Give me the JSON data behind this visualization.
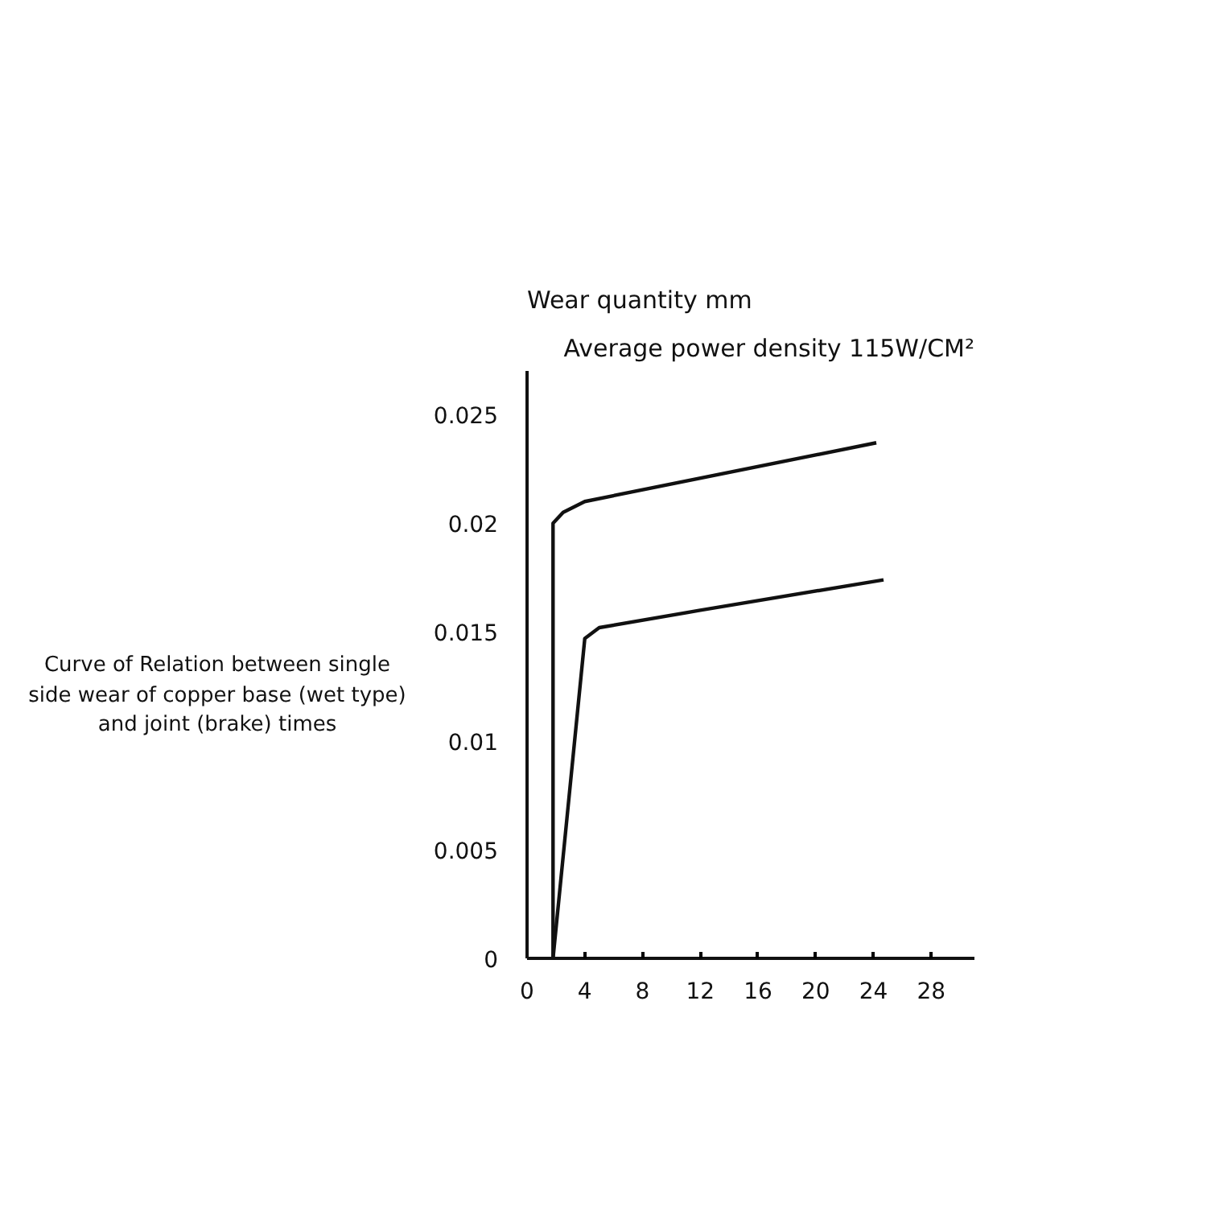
{
  "chart_data": {
    "type": "line",
    "ylabel": "Wear quantity mm",
    "annotations": [
      "Average power density 115W/CM²",
      "Curve of Relation between single side wear of copper base (wet type) and joint (brake) times"
    ],
    "series": [
      {
        "color": "#111111",
        "x": [
          1.8,
          1.8,
          2.5,
          4,
          24.2
        ],
        "values": [
          0,
          0.02,
          0.0205,
          0.021,
          0.0237
        ]
      },
      {
        "color": "#111111",
        "x": [
          1.8,
          4,
          5,
          12,
          24.7
        ],
        "values": [
          0,
          0.0147,
          0.0152,
          0.016,
          0.0174
        ]
      }
    ],
    "xlim": [
      0,
      31
    ],
    "xticks": [
      0,
      4,
      8,
      12,
      16,
      20,
      24,
      28
    ],
    "ylim": [
      0,
      0.027
    ],
    "yticks": [
      0,
      {
        "value": 0.005,
        "label": "0.005"
      },
      0.01,
      0.015,
      0.02,
      0.025
    ],
    "grid": false,
    "marker": "none",
    "line_style": "solid"
  }
}
